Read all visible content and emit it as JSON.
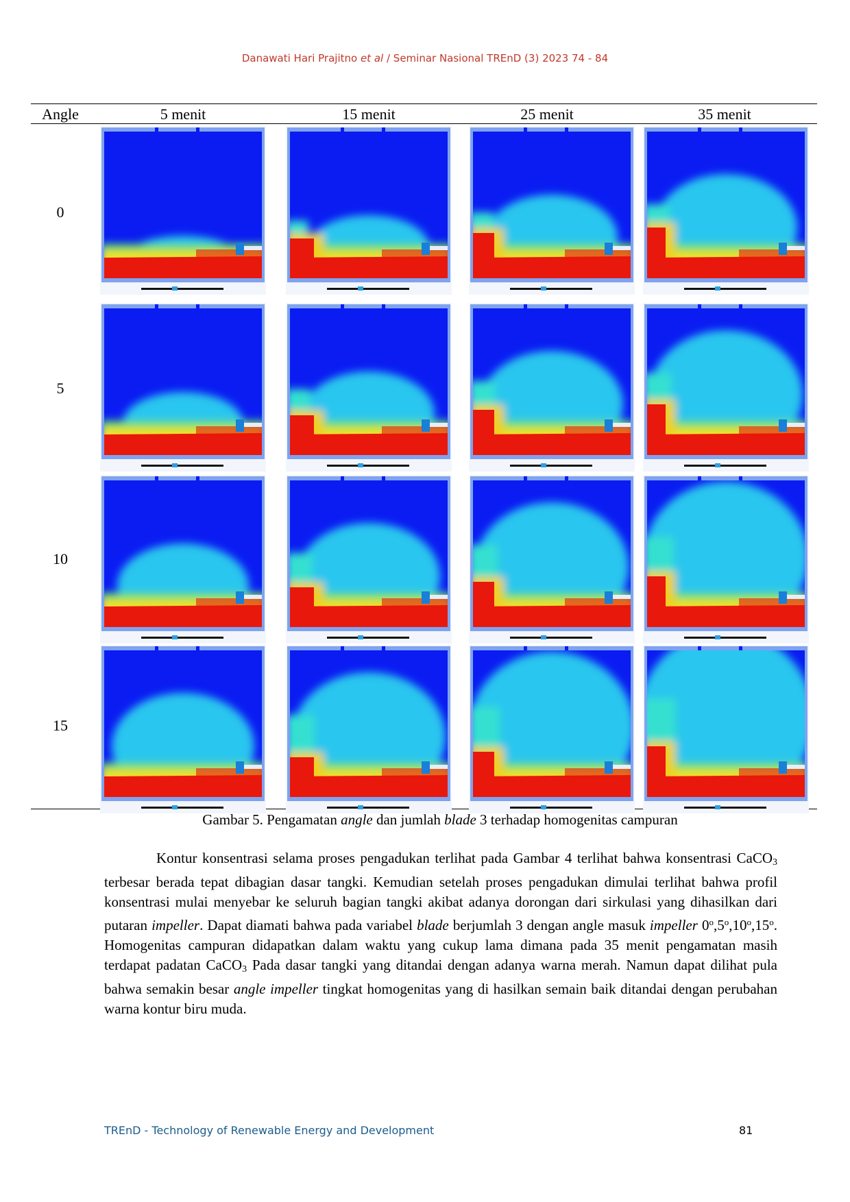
{
  "header": {
    "parts": [
      "Danawati Hari Prajitno ",
      "et al",
      " / Seminar Nasional TREnD (3) 2023 74 - 84"
    ]
  },
  "table": {
    "columns": [
      "Angle",
      "5 menit",
      "15 menit",
      "25 menit",
      "35 menit"
    ],
    "rows": [
      "0",
      "5",
      "10",
      "15"
    ]
  },
  "caption": {
    "parts": [
      "Gambar 5.  Pengamatan ",
      "angle",
      " dan jumlah ",
      "blade",
      " 3 terhadap homogenitas campuran"
    ]
  },
  "paragraph": {
    "parts": [
      "Kontur konsentrasi selama proses pengadukan terlihat pada Gambar 4 terlihat bahwa konsentrasi CaCO",
      "3",
      " terbesar berada tepat dibagian dasar tangki. Kemudian setelah proses pengadukan dimulai terlihat bahwa profil konsentrasi mulai menyebar ke seluruh bagian tangki akibat adanya dorongan dari sirkulasi yang dihasilkan dari putaran ",
      "impeller",
      ". Dapat diamati bahwa pada variabel ",
      "blade",
      " berjumlah 3 dengan angle masuk ",
      "impeller",
      " 0",
      "o",
      ",5",
      "o",
      ",10",
      "o",
      ",15",
      "o",
      ". Homogenitas campuran didapatkan dalam waktu yang cukup lama dimana pada 35 menit pengamatan masih terdapat padatan CaCO",
      "3",
      " Pada dasar tangki yang ditandai dengan adanya warna merah. Namun dapat dilihat pula bahwa semakin besar ",
      "angle impeller",
      " tingkat homogenitas yang di hasilkan semain baik ditandai dengan perubahan warna kontur biru muda."
    ]
  },
  "footer": {
    "journal": "TREnD - Technology of Renewable Energy and Development",
    "page": "81"
  }
}
